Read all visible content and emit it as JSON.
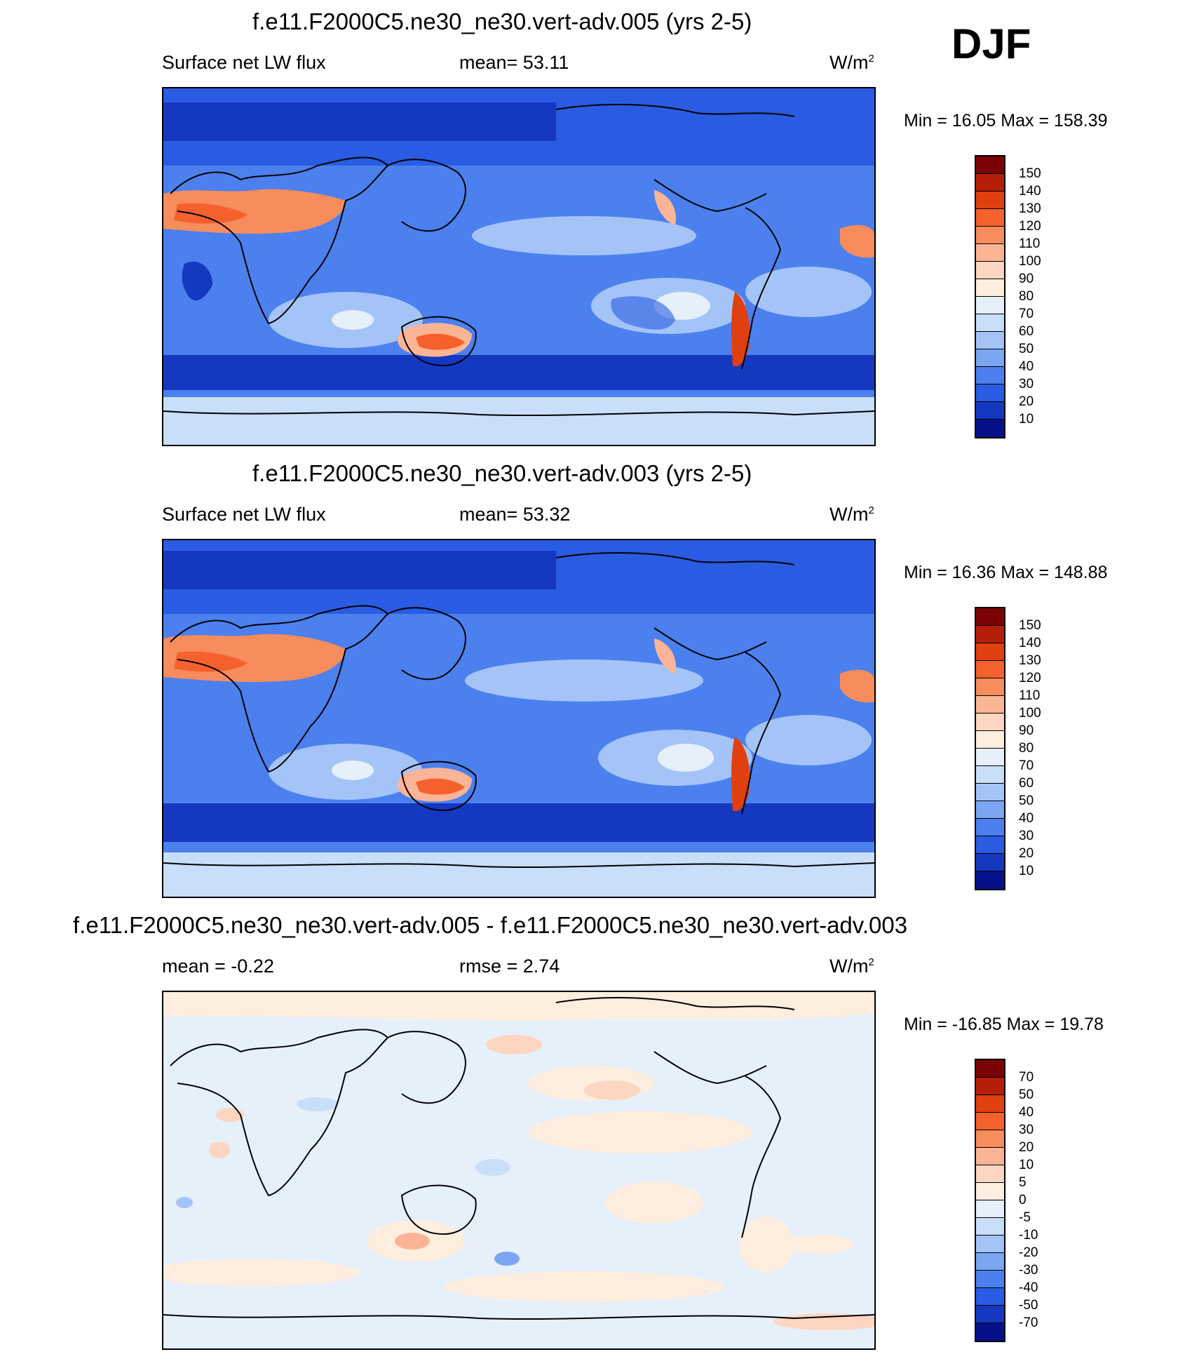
{
  "season": "DJF",
  "units": {
    "base": "W/m",
    "exp": "2"
  },
  "panels": [
    {
      "title": "f.e11.F2000C5.ne30_ne30.vert-adv.005 (yrs 2-5)",
      "left_label": "Surface net LW flux",
      "center_label": "mean=  53.11",
      "minmax": "Min =  16.05 Max = 158.39",
      "colorbar_labels": [
        "150",
        "140",
        "130",
        "120",
        "110",
        "100",
        "90",
        "80",
        "70",
        "60",
        "50",
        "40",
        "30",
        "20",
        "10"
      ],
      "colorbar_colors": [
        "#7a0403",
        "#b51f08",
        "#e0400f",
        "#f5612c",
        "#f78c5c",
        "#fbb596",
        "#fcd6c0",
        "#fdeedf",
        "#e6f0fb",
        "#c9def9",
        "#a4c4f7",
        "#7aa6f3",
        "#4b80ee",
        "#2a5ce3",
        "#1438c0",
        "#05118a"
      ]
    },
    {
      "title": "f.e11.F2000C5.ne30_ne30.vert-adv.003 (yrs 2-5)",
      "left_label": "Surface net LW flux",
      "center_label": "mean=  53.32",
      "minmax": "Min =  16.36 Max = 148.88",
      "colorbar_labels": [
        "150",
        "140",
        "130",
        "120",
        "110",
        "100",
        "90",
        "80",
        "70",
        "60",
        "50",
        "40",
        "30",
        "20",
        "10"
      ],
      "colorbar_colors": [
        "#7a0403",
        "#b51f08",
        "#e0400f",
        "#f5612c",
        "#f78c5c",
        "#fbb596",
        "#fcd6c0",
        "#fdeedf",
        "#e6f0fb",
        "#c9def9",
        "#a4c4f7",
        "#7aa6f3",
        "#4b80ee",
        "#2a5ce3",
        "#1438c0",
        "#05118a"
      ]
    },
    {
      "title": "f.e11.F2000C5.ne30_ne30.vert-adv.005 - f.e11.F2000C5.ne30_ne30.vert-adv.003",
      "left_label": "mean =  -0.22",
      "center_label": "rmse =   2.74",
      "minmax": "Min = -16.85 Max =  19.78",
      "colorbar_labels": [
        "70",
        "50",
        "40",
        "30",
        "20",
        "10",
        "5",
        "0",
        "-5",
        "-10",
        "-20",
        "-30",
        "-40",
        "-50",
        "-70"
      ],
      "colorbar_colors": [
        "#7a0403",
        "#b51f08",
        "#e0400f",
        "#f5612c",
        "#f78c5c",
        "#fbb596",
        "#fcd6c0",
        "#fdeedf",
        "#e6f0fb",
        "#c9def9",
        "#a4c4f7",
        "#7aa6f3",
        "#4b80ee",
        "#2a5ce3",
        "#1438c0",
        "#05118a"
      ]
    }
  ]
}
